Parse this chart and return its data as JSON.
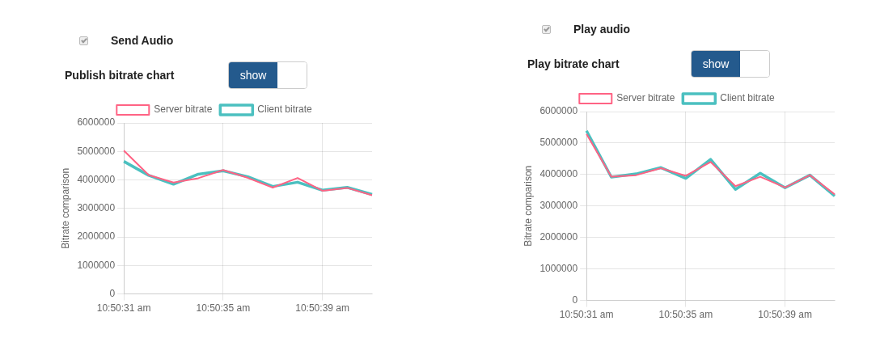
{
  "chart_data": [
    {
      "type": "line",
      "title": "Publish bitrate chart",
      "annotations": [
        "Send Audio",
        "show"
      ],
      "categories": [
        "10:50:31 am",
        null,
        null,
        null,
        "10:50:35 am",
        null,
        null,
        null,
        "10:50:39 am",
        null,
        null
      ],
      "ylabel": "Bitrate comparison",
      "ylim": [
        0,
        6000000
      ],
      "yticks": [
        0,
        1000000,
        2000000,
        3000000,
        4000000,
        5000000,
        6000000
      ],
      "grid": true,
      "legend": "top",
      "marker": "none",
      "line_style": "solid",
      "series": [
        {
          "name": "Server bitrate",
          "color": "#ff6384",
          "values": [
            5030000,
            4170000,
            3910000,
            4060000,
            4350000,
            4070000,
            3730000,
            4070000,
            3620000,
            3720000,
            3460000
          ]
        },
        {
          "name": "Client bitrate",
          "color": "#4bc0c0",
          "values": [
            4650000,
            4160000,
            3850000,
            4200000,
            4320000,
            4110000,
            3770000,
            3920000,
            3640000,
            3740000,
            3490000
          ]
        }
      ]
    },
    {
      "type": "line",
      "title": "Play bitrate chart",
      "annotations": [
        "Play audio",
        "show"
      ],
      "categories": [
        "10:50:31 am",
        null,
        null,
        null,
        "10:50:35 am",
        null,
        null,
        null,
        "10:50:39 am",
        null,
        null
      ],
      "ylabel": "Bitrate comparison",
      "ylim": [
        0,
        6000000
      ],
      "yticks": [
        0,
        1000000,
        2000000,
        3000000,
        4000000,
        5000000,
        6000000
      ],
      "grid": true,
      "legend": "top",
      "marker": "none",
      "line_style": "solid",
      "series": [
        {
          "name": "Server bitrate",
          "color": "#ff6384",
          "values": [
            5290000,
            3930000,
            3980000,
            4200000,
            3960000,
            4400000,
            3630000,
            3930000,
            3590000,
            3980000,
            3370000
          ]
        },
        {
          "name": "Client bitrate",
          "color": "#4bc0c0",
          "values": [
            5390000,
            3920000,
            4020000,
            4220000,
            3880000,
            4480000,
            3530000,
            4040000,
            3580000,
            3980000,
            3320000
          ]
        }
      ]
    }
  ]
}
